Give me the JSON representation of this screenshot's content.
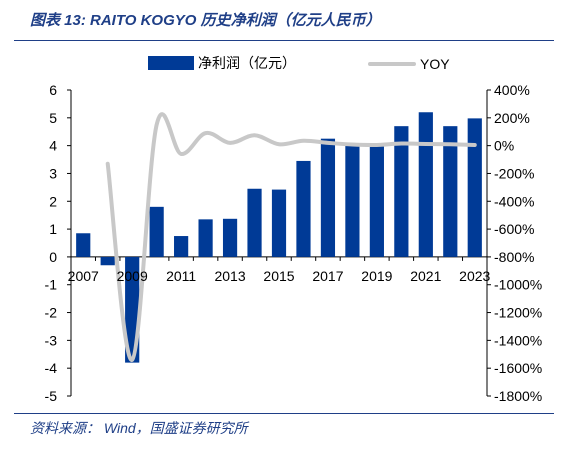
{
  "header": {
    "title": "图表 13:  RAITO KOGYO 历史净利润（亿元人民币）"
  },
  "footer": {
    "source": "资料来源： Wind，国盛证券研究所"
  },
  "chart_data": {
    "type": "bar",
    "title": "图表 13:  RAITO KOGYO 历史净利润（亿元人民币）",
    "xlabel": "",
    "ylabel": "",
    "y2label": "",
    "x": [
      2007,
      2008,
      2009,
      2010,
      2011,
      2012,
      2013,
      2014,
      2015,
      2016,
      2017,
      2018,
      2019,
      2020,
      2021,
      2022,
      2023
    ],
    "x_tick_labels": [
      "2007",
      "2009",
      "2011",
      "2013",
      "2015",
      "2017",
      "2019",
      "2021",
      "2023"
    ],
    "ylim": [
      -5,
      6
    ],
    "yticks": [
      "6",
      "5",
      "4",
      "3",
      "2",
      "1",
      "0",
      "-1",
      "-2",
      "-3",
      "-4",
      "-5"
    ],
    "y2lim": [
      -1800,
      400
    ],
    "y2ticks": [
      "400%",
      "200%",
      "0%",
      "-200%",
      "-400%",
      "-600%",
      "-800%",
      "-1000%",
      "-1200%",
      "-1400%",
      "-1600%",
      "-1800%"
    ],
    "legend_position": "top",
    "grid": false,
    "series": [
      {
        "name": "净利润（亿元）",
        "kind": "bar",
        "axis": "left",
        "color": "#003a96",
        "values": [
          0.85,
          -0.3,
          -3.8,
          1.8,
          0.75,
          1.35,
          1.37,
          2.45,
          2.42,
          3.45,
          4.25,
          4.0,
          4.0,
          4.7,
          5.2,
          4.7,
          4.98
        ]
      },
      {
        "name": "YOY",
        "kind": "line",
        "axis": "right",
        "color": "#c8c8c8",
        "values": [
          null,
          -130,
          -1540,
          150,
          -60,
          90,
          20,
          75,
          10,
          35,
          20,
          8,
          5,
          15,
          12,
          10,
          5
        ]
      }
    ]
  }
}
